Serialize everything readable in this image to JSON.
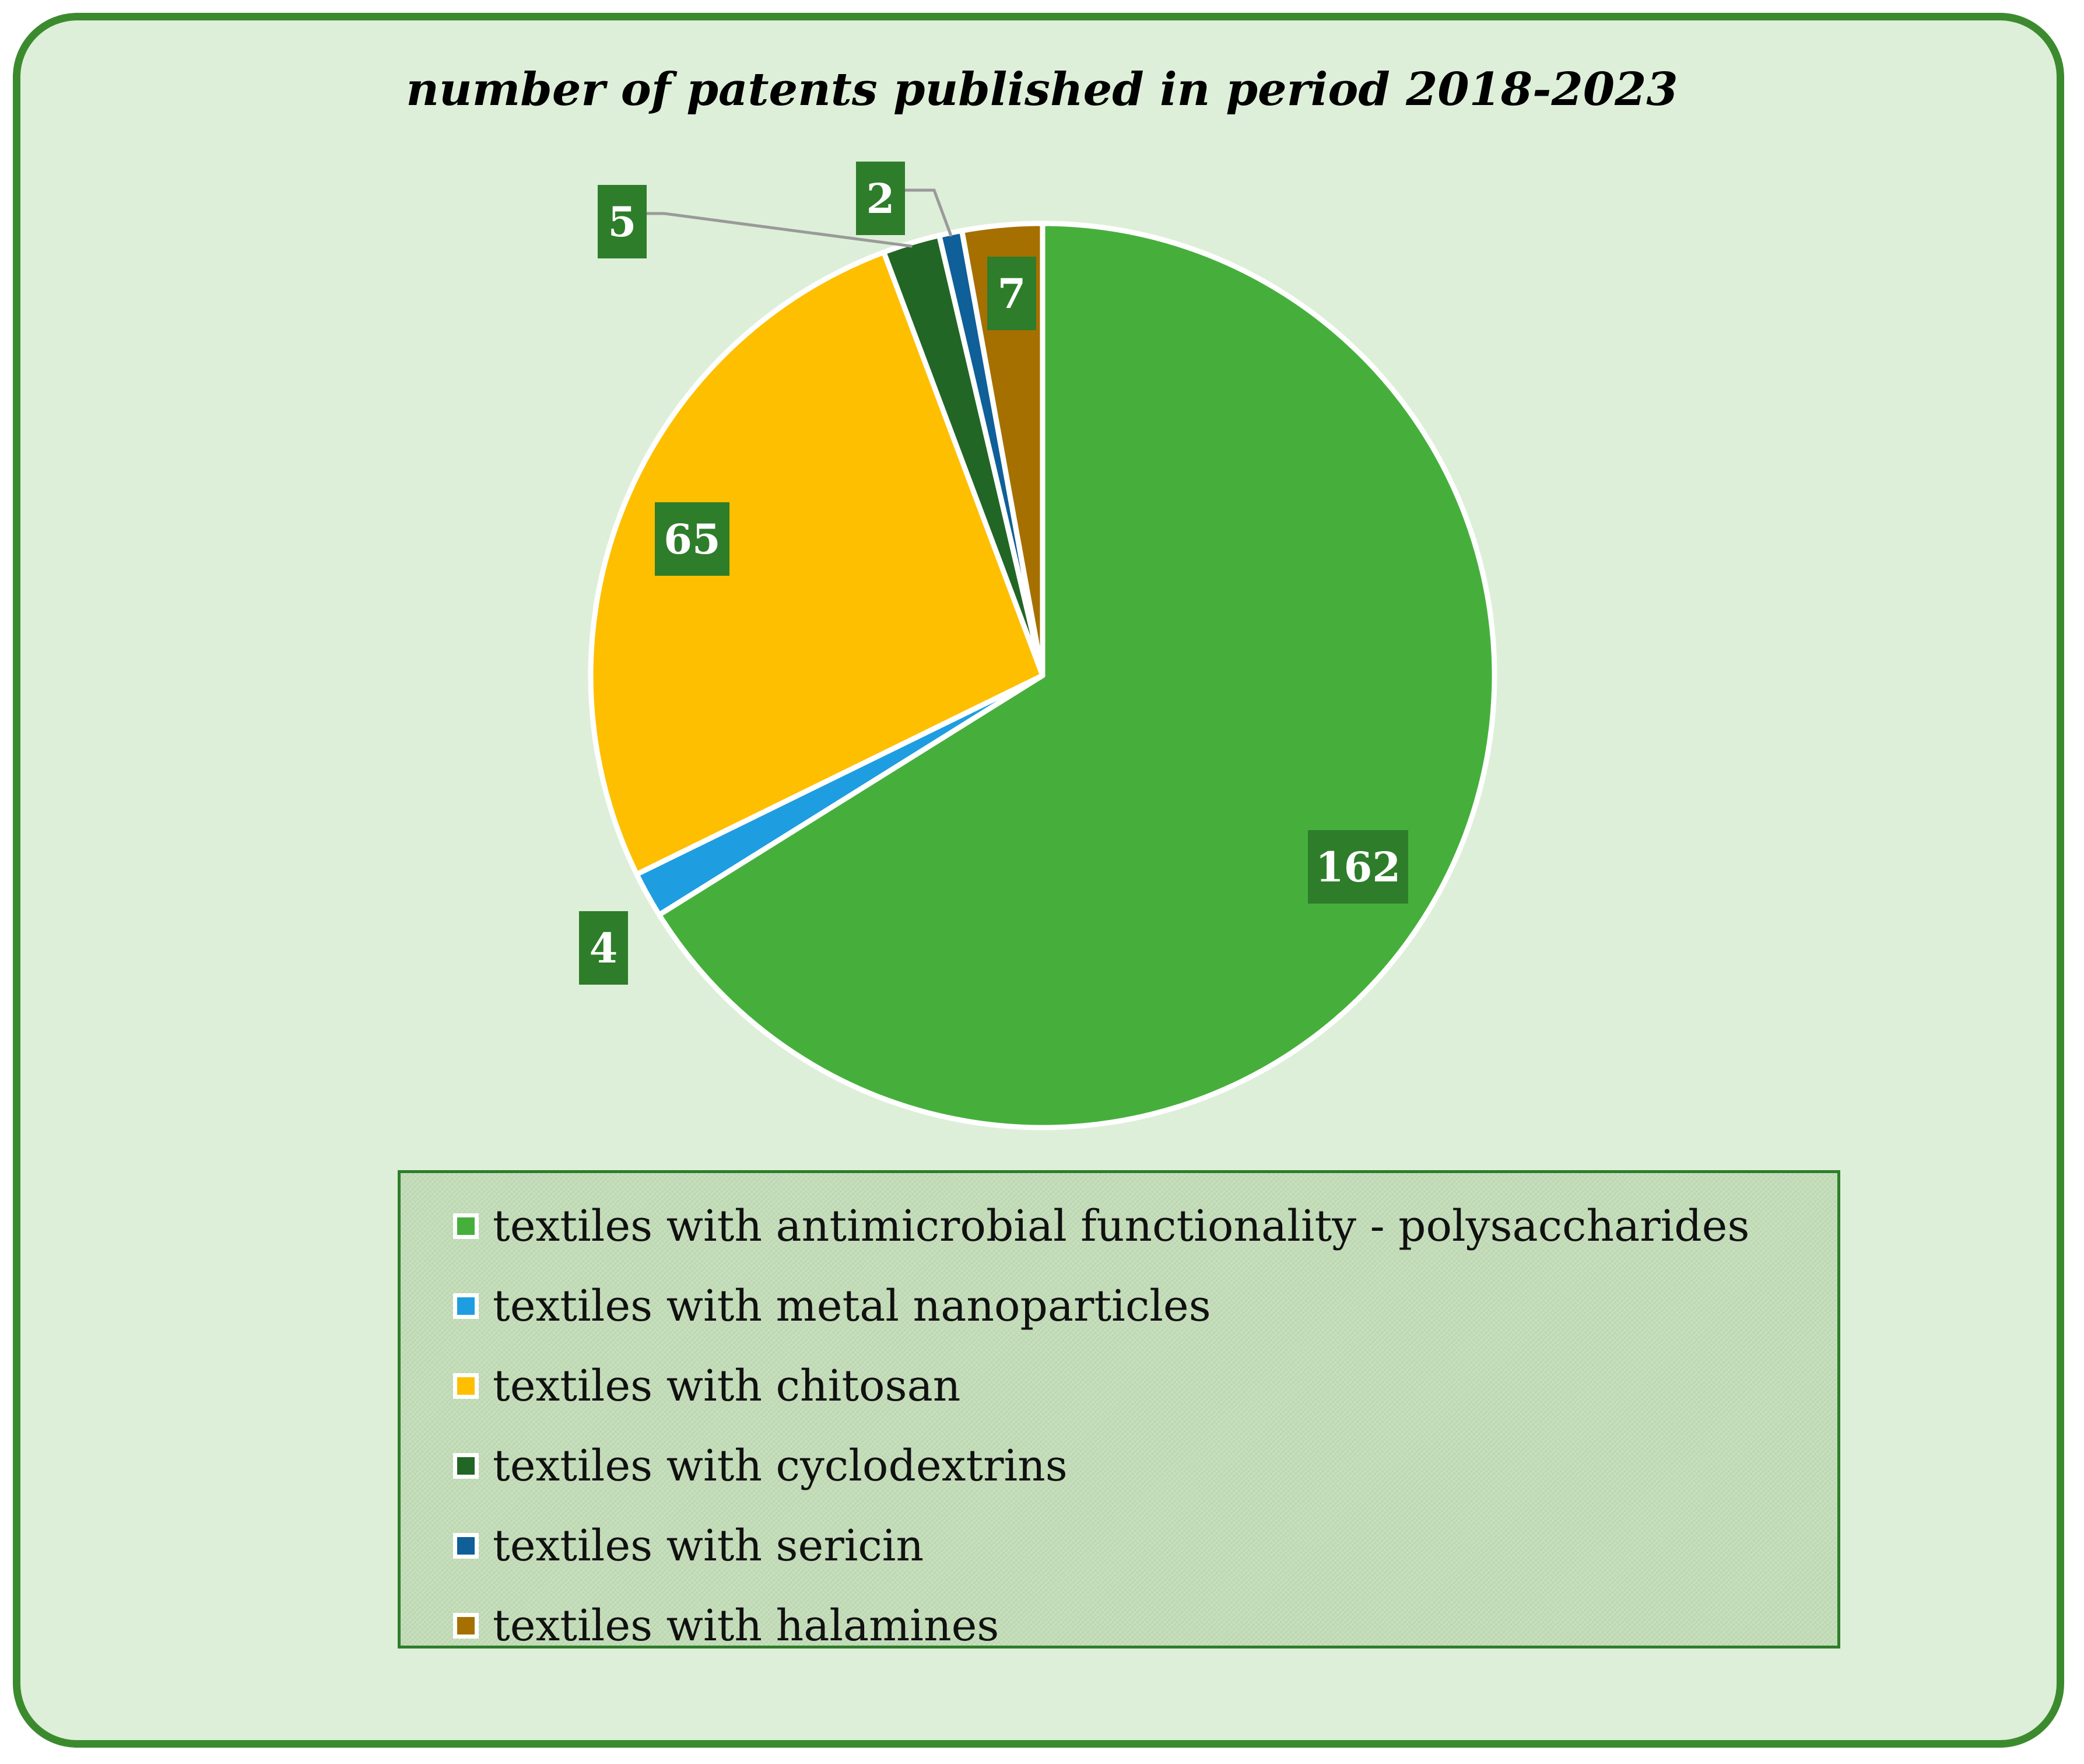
{
  "chart_data": {
    "type": "pie",
    "title": "number of patents published in period 2018-2023",
    "categories": [
      "textiles with antimicrobial functionality - polysaccharides",
      "textiles with metal nanoparticles",
      "textiles with chitosan",
      "textiles with cyclodextrins",
      "textiles with sericin",
      "textiles with halamines"
    ],
    "values": [
      162,
      4,
      65,
      5,
      2,
      7
    ],
    "colors": [
      "#46af3c",
      "#1e9ee0",
      "#fdbf00",
      "#226625",
      "#0f5f98",
      "#a67000"
    ],
    "start_angle_deg": 0,
    "direction": "clockwise",
    "legend_position": "bottom",
    "label_box_color": "#2e7d2a"
  }
}
